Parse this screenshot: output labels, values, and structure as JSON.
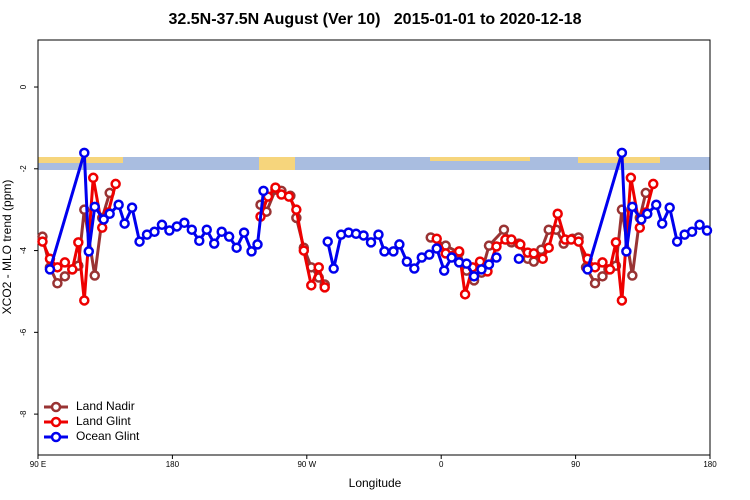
{
  "chart_data": {
    "type": "line",
    "title": "32.5N-37.5N August (Ver 10)   2015-01-01 to 2020-12-18",
    "xlabel": "Longitude",
    "ylabel": "XCO2 - MLO trend (ppm)",
    "xlim": [
      90,
      540
    ],
    "ylim": [
      -9,
      1.15
    ],
    "xticks": [
      {
        "value": 90,
        "label": "90 E"
      },
      180,
      {
        "value": 270,
        "label": "90 W"
      },
      {
        "value": 360,
        "label": "0"
      },
      {
        "value": 450,
        "label": "90"
      },
      {
        "value": 540,
        "label": "180"
      }
    ],
    "yticks": [
      0,
      -2,
      -4,
      -6,
      -8
    ],
    "legend": "lower left",
    "series": [
      {
        "name": "Land Nadir",
        "color": "#993333",
        "x": [
          93,
          98,
          103,
          108,
          113,
          117,
          121,
          128,
          133,
          138,
          null,
          239,
          243,
          249,
          253,
          259,
          263,
          268,
          273,
          278,
          282,
          null,
          353,
          363,
          372,
          377,
          382,
          387,
          392,
          402,
          407,
          412,
          418,
          422,
          427,
          432,
          437,
          442,
          448,
          452,
          457,
          463,
          468,
          472,
          477,
          481,
          488,
          493,
          497
        ],
        "values": [
          -3.66,
          -4.41,
          -4.8,
          -4.63,
          -4.46,
          -4.37,
          -3.0,
          -4.61,
          -3.2,
          -2.59,
          null,
          -2.88,
          -3.05,
          -2.51,
          -2.54,
          -2.66,
          -3.2,
          -3.93,
          -4.41,
          -4.66,
          -4.83,
          null,
          -3.68,
          -3.88,
          -4.05,
          -4.49,
          -4.73,
          -4.54,
          -3.88,
          -3.49,
          -3.8,
          -3.83,
          -4.2,
          -4.27,
          -3.98,
          -3.49,
          -3.49,
          -3.83,
          -3.71,
          -3.68,
          -4.41,
          -4.8,
          -4.63,
          -4.46,
          -4.37,
          -3.0,
          -4.61,
          -3.2,
          -2.59
        ]
      },
      {
        "name": "Land Glint",
        "color": "#ee0000",
        "x": [
          93,
          98,
          103,
          108,
          113,
          117,
          121,
          127,
          133,
          137,
          142,
          null,
          239,
          244,
          249,
          253,
          258,
          263,
          268,
          273,
          278,
          282,
          null,
          357,
          363,
          372,
          376,
          381,
          386,
          391,
          397,
          403,
          407,
          413,
          418,
          422,
          428,
          432,
          438,
          443,
          447,
          452,
          458,
          463,
          468,
          473,
          477,
          481,
          487,
          493,
          497,
          502
        ],
        "values": [
          -3.78,
          -4.2,
          -4.41,
          -4.29,
          -4.46,
          -3.8,
          -5.22,
          -2.22,
          -3.44,
          -3.07,
          -2.37,
          null,
          -3.17,
          -2.68,
          -2.46,
          -2.63,
          -2.68,
          -3.0,
          -4.0,
          -4.85,
          -4.41,
          -4.9,
          null,
          -3.71,
          -4.07,
          -4.02,
          -5.07,
          -4.41,
          -4.27,
          -4.51,
          -3.9,
          -3.73,
          -3.73,
          -3.85,
          -4.05,
          -4.07,
          -4.2,
          -3.93,
          -3.1,
          -3.73,
          -3.73,
          -3.78,
          -4.2,
          -4.41,
          -4.29,
          -4.46,
          -3.8,
          -5.22,
          -2.22,
          -3.44,
          -3.07,
          -2.37
        ]
      },
      {
        "name": "Ocean Glint",
        "color": "#0000ee",
        "x": [
          98,
          121,
          124,
          128,
          134,
          138,
          144,
          148,
          153,
          158,
          163,
          168,
          173,
          178,
          183,
          188,
          193,
          198,
          203,
          208,
          213,
          218,
          223,
          228,
          233,
          237,
          241,
          null,
          284,
          288,
          293,
          298,
          303,
          308,
          313,
          318,
          322,
          328,
          332,
          337,
          342,
          347,
          352,
          357,
          362,
          367,
          372,
          377,
          382,
          387,
          392,
          397,
          null,
          412,
          null,
          458,
          481,
          484,
          488,
          494,
          498,
          504,
          508,
          513,
          518,
          523,
          528,
          533,
          538
        ],
        "values": [
          -4.46,
          -1.61,
          -4.02,
          -2.93,
          -3.24,
          -3.1,
          -2.88,
          -3.34,
          -2.95,
          -3.78,
          -3.61,
          -3.54,
          -3.37,
          -3.51,
          -3.41,
          -3.32,
          -3.49,
          -3.76,
          -3.49,
          -3.83,
          -3.54,
          -3.66,
          -3.93,
          -3.56,
          -4.02,
          -3.85,
          -2.54,
          null,
          -3.78,
          -4.44,
          -3.61,
          -3.56,
          -3.59,
          -3.63,
          -3.8,
          -3.61,
          -4.02,
          -4.02,
          -3.85,
          -4.27,
          -4.44,
          -4.17,
          -4.1,
          -3.95,
          -4.49,
          -4.17,
          -4.29,
          -4.32,
          -4.63,
          -4.46,
          -4.34,
          -4.17,
          null,
          -4.2,
          null,
          -4.46,
          -1.61,
          -4.02,
          -2.93,
          -3.24,
          -3.1,
          -2.88,
          -3.34,
          -2.95,
          -3.78,
          -3.61,
          -3.54,
          -3.37,
          -3.51
        ]
      }
    ]
  }
}
